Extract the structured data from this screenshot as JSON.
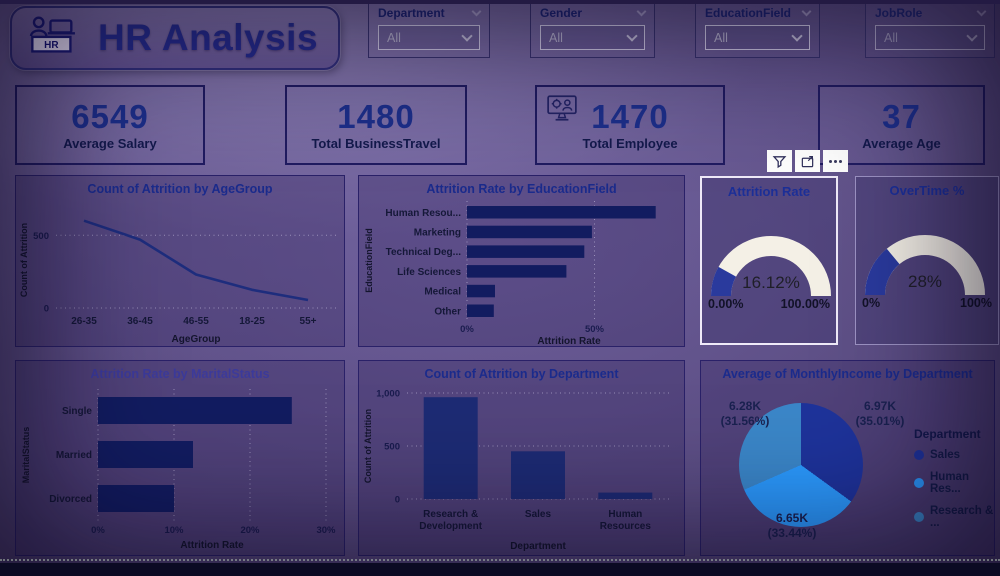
{
  "header": {
    "title": "HR Analysis",
    "logo_text": "HR"
  },
  "filters": [
    {
      "label": "Department",
      "value": "All"
    },
    {
      "label": "Gender",
      "value": "All"
    },
    {
      "label": "EducationField",
      "value": "All"
    },
    {
      "label": "JobRole",
      "value": "All"
    }
  ],
  "kpis": [
    {
      "value": "6549",
      "label": "Average Salary"
    },
    {
      "value": "1480",
      "label": "Total BusinessTravel"
    },
    {
      "value": "1470",
      "label": "Total Employee",
      "icon": "monitor-person-icon"
    },
    {
      "value": "37",
      "label": "Average Age"
    }
  ],
  "toolbar": {
    "buttons": [
      "funnel-icon",
      "focus-mode-icon",
      "more-options-icon"
    ]
  },
  "colors": {
    "accent_navy": "#1b2b8c",
    "gauge_fill": "#2a3a9d",
    "gauge_track": "#f4f0e6"
  },
  "chart_data": [
    {
      "type": "line",
      "title": "Count of Attrition by AgeGroup",
      "categories": [
        "26-35",
        "36-45",
        "46-55",
        "18-25",
        "55+"
      ],
      "values": [
        600,
        470,
        230,
        125,
        55
      ],
      "xlabel": "AgeGroup",
      "ylabel": "Count of Attrition",
      "yticks": [
        0,
        500
      ],
      "ytick_labels": [
        "0",
        "500"
      ],
      "ylim": [
        0,
        660
      ],
      "grid": "dotted",
      "color": "#1e2d7d"
    },
    {
      "type": "bar",
      "orientation": "horizontal",
      "title": "Attrition Rate by EducationField",
      "categories": [
        "Human Resou...",
        "Marketing",
        "Technical Deg...",
        "Life Sciences",
        "Medical",
        "Other"
      ],
      "values": [
        74,
        49,
        46,
        39,
        11,
        10.5
      ],
      "unit": "%",
      "xlabel": "Attrition Rate",
      "ylabel": "EducationField",
      "xticks": [
        0,
        50
      ],
      "xtick_labels": [
        "0%",
        "50%"
      ],
      "xlim": [
        0,
        80
      ],
      "grid": "dotted",
      "color": "#121c60"
    },
    {
      "type": "gauge",
      "title": "Attrition Rate",
      "value": 16.12,
      "value_label": "16.12%",
      "min": 0,
      "max": 100,
      "min_label": "0.00%",
      "max_label": "100.00%",
      "selected": true
    },
    {
      "type": "gauge",
      "title": "OverTime %",
      "value": 28,
      "value_label": "28%",
      "min": 0,
      "max": 100,
      "min_label": "0%",
      "max_label": "100%"
    },
    {
      "type": "bar",
      "orientation": "horizontal",
      "title": "Attrition Rate by MaritalStatus",
      "categories": [
        "Single",
        "Married",
        "Divorced"
      ],
      "values": [
        25.5,
        12.5,
        10
      ],
      "unit": "%",
      "xlabel": "Attrition Rate",
      "ylabel": "MaritalStatus",
      "xticks": [
        0,
        10,
        20,
        30
      ],
      "xtick_labels": [
        "0%",
        "10%",
        "20%",
        "30%"
      ],
      "xlim": [
        0,
        30
      ],
      "grid": "dotted",
      "color": "#121c60"
    },
    {
      "type": "column",
      "title": "Count of Attrition by Department",
      "categories": [
        [
          "Research &",
          "Development"
        ],
        [
          "Sales"
        ],
        [
          "Human",
          "Resources"
        ]
      ],
      "values": [
        960,
        450,
        60
      ],
      "xlabel": "Department",
      "ylabel": "Count of Attrition",
      "yticks": [
        0,
        500,
        1000
      ],
      "ytick_labels": [
        "0",
        "500",
        "1,000"
      ],
      "ylim": [
        0,
        1000
      ],
      "grid": "dotted",
      "color": "#1d2b74"
    },
    {
      "type": "pie",
      "title": "Average of MonthlyIncome by Department",
      "legend_title": "Department",
      "legend_position": "right",
      "slices": [
        {
          "name": "Sales",
          "label": "6.97K",
          "pct": "(35.01%)",
          "value": 35.01,
          "color": "#1e339b",
          "legend": "Sales"
        },
        {
          "name": "Human Resources",
          "label": "6.65K",
          "pct": "(33.44%)",
          "value": 33.44,
          "color": "#2b9bff",
          "legend": "Human Res..."
        },
        {
          "name": "Research & Development",
          "label": "6.28K",
          "pct": "(31.56%)",
          "value": 31.56,
          "color": "#3b87c9",
          "legend": "Research & ..."
        }
      ]
    }
  ]
}
